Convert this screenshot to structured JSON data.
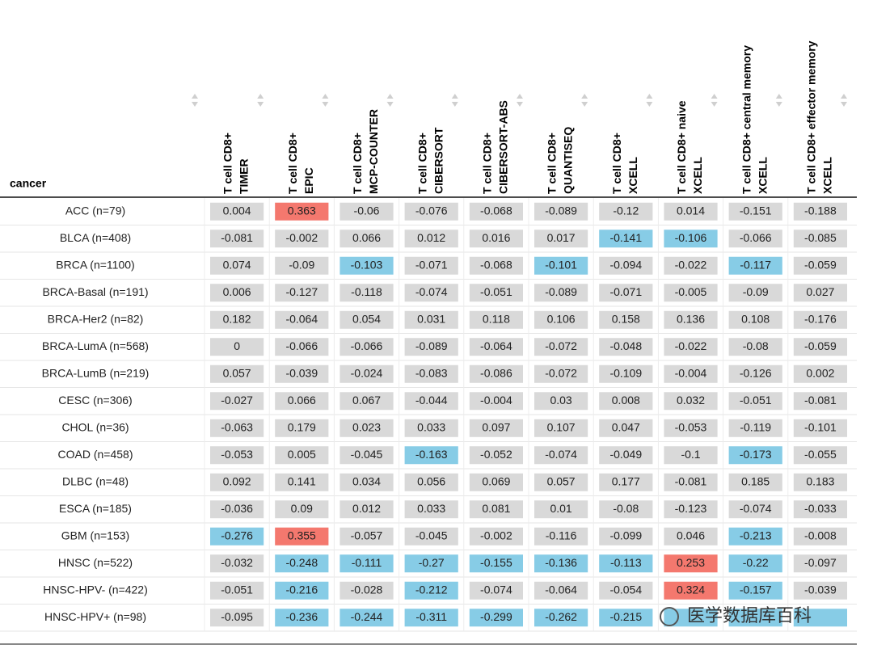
{
  "table": {
    "header": "cancer",
    "columns": [
      [
        "T cell CD8+",
        "TIMER"
      ],
      [
        "T cell CD8+",
        "EPIC"
      ],
      [
        "T cell CD8+",
        "MCP-COUNTER"
      ],
      [
        "T cell CD8+",
        "CIBERSORT"
      ],
      [
        "T cell CD8+",
        "CIBERSORT-ABS"
      ],
      [
        "T cell CD8+",
        "QUANTISEQ"
      ],
      [
        "T cell CD8+",
        "XCELL"
      ],
      [
        "T cell CD8+ naive",
        "XCELL"
      ],
      [
        "T cell CD8+ central memory",
        "XCELL"
      ],
      [
        "T cell CD8+ effector memory",
        "XCELL"
      ]
    ],
    "rows": [
      {
        "label": "ACC (n=79)",
        "values": [
          0.004,
          0.363,
          -0.06,
          -0.076,
          -0.068,
          -0.089,
          -0.12,
          0.014,
          -0.151,
          -0.188
        ],
        "colors": [
          "#d9d9d9",
          "#f4786e",
          "#d9d9d9",
          "#d9d9d9",
          "#d9d9d9",
          "#d9d9d9",
          "#d9d9d9",
          "#d9d9d9",
          "#d9d9d9",
          "#d9d9d9"
        ]
      },
      {
        "label": "BLCA (n=408)",
        "values": [
          -0.081,
          -0.002,
          0.066,
          0.012,
          0.016,
          0.017,
          -0.141,
          -0.106,
          -0.066,
          -0.085
        ],
        "colors": [
          "#d9d9d9",
          "#d9d9d9",
          "#d9d9d9",
          "#d9d9d9",
          "#d9d9d9",
          "#d9d9d9",
          "#87cce6",
          "#87cce6",
          "#d9d9d9",
          "#d9d9d9"
        ]
      },
      {
        "label": "BRCA (n=1100)",
        "values": [
          0.074,
          -0.09,
          -0.103,
          -0.071,
          -0.068,
          -0.101,
          -0.094,
          -0.022,
          -0.117,
          -0.059
        ],
        "colors": [
          "#d9d9d9",
          "#d9d9d9",
          "#87cce6",
          "#d9d9d9",
          "#d9d9d9",
          "#87cce6",
          "#d9d9d9",
          "#d9d9d9",
          "#87cce6",
          "#d9d9d9"
        ]
      },
      {
        "label": "BRCA-Basal (n=191)",
        "values": [
          0.006,
          -0.127,
          -0.118,
          -0.074,
          -0.051,
          -0.089,
          -0.071,
          -0.005,
          -0.09,
          0.027
        ],
        "colors": [
          "#d9d9d9",
          "#d9d9d9",
          "#d9d9d9",
          "#d9d9d9",
          "#d9d9d9",
          "#d9d9d9",
          "#d9d9d9",
          "#d9d9d9",
          "#d9d9d9",
          "#d9d9d9"
        ]
      },
      {
        "label": "BRCA-Her2 (n=82)",
        "values": [
          0.182,
          -0.064,
          0.054,
          0.031,
          0.118,
          0.106,
          0.158,
          0.136,
          0.108,
          -0.176
        ],
        "colors": [
          "#d9d9d9",
          "#d9d9d9",
          "#d9d9d9",
          "#d9d9d9",
          "#d9d9d9",
          "#d9d9d9",
          "#d9d9d9",
          "#d9d9d9",
          "#d9d9d9",
          "#d9d9d9"
        ]
      },
      {
        "label": "BRCA-LumA (n=568)",
        "values": [
          0,
          -0.066,
          -0.066,
          -0.089,
          -0.064,
          -0.072,
          -0.048,
          -0.022,
          -0.08,
          -0.059
        ],
        "colors": [
          "#d9d9d9",
          "#d9d9d9",
          "#d9d9d9",
          "#d9d9d9",
          "#d9d9d9",
          "#d9d9d9",
          "#d9d9d9",
          "#d9d9d9",
          "#d9d9d9",
          "#d9d9d9"
        ]
      },
      {
        "label": "BRCA-LumB (n=219)",
        "values": [
          0.057,
          -0.039,
          -0.024,
          -0.083,
          -0.086,
          -0.072,
          -0.109,
          -0.004,
          -0.126,
          0.002
        ],
        "colors": [
          "#d9d9d9",
          "#d9d9d9",
          "#d9d9d9",
          "#d9d9d9",
          "#d9d9d9",
          "#d9d9d9",
          "#d9d9d9",
          "#d9d9d9",
          "#d9d9d9",
          "#d9d9d9"
        ]
      },
      {
        "label": "CESC (n=306)",
        "values": [
          -0.027,
          0.066,
          0.067,
          -0.044,
          -0.004,
          0.03,
          0.008,
          0.032,
          -0.051,
          -0.081
        ],
        "colors": [
          "#d9d9d9",
          "#d9d9d9",
          "#d9d9d9",
          "#d9d9d9",
          "#d9d9d9",
          "#d9d9d9",
          "#d9d9d9",
          "#d9d9d9",
          "#d9d9d9",
          "#d9d9d9"
        ]
      },
      {
        "label": "CHOL (n=36)",
        "values": [
          -0.063,
          0.179,
          0.023,
          0.033,
          0.097,
          0.107,
          0.047,
          -0.053,
          -0.119,
          -0.101
        ],
        "colors": [
          "#d9d9d9",
          "#d9d9d9",
          "#d9d9d9",
          "#d9d9d9",
          "#d9d9d9",
          "#d9d9d9",
          "#d9d9d9",
          "#d9d9d9",
          "#d9d9d9",
          "#d9d9d9"
        ]
      },
      {
        "label": "COAD (n=458)",
        "values": [
          -0.053,
          0.005,
          -0.045,
          -0.163,
          -0.052,
          -0.074,
          -0.049,
          -0.1,
          -0.173,
          -0.055
        ],
        "colors": [
          "#d9d9d9",
          "#d9d9d9",
          "#d9d9d9",
          "#87cce6",
          "#d9d9d9",
          "#d9d9d9",
          "#d9d9d9",
          "#d9d9d9",
          "#87cce6",
          "#d9d9d9"
        ]
      },
      {
        "label": "DLBC (n=48)",
        "values": [
          0.092,
          0.141,
          0.034,
          0.056,
          0.069,
          0.057,
          0.177,
          -0.081,
          0.185,
          0.183
        ],
        "colors": [
          "#d9d9d9",
          "#d9d9d9",
          "#d9d9d9",
          "#d9d9d9",
          "#d9d9d9",
          "#d9d9d9",
          "#d9d9d9",
          "#d9d9d9",
          "#d9d9d9",
          "#d9d9d9"
        ]
      },
      {
        "label": "ESCA (n=185)",
        "values": [
          -0.036,
          0.09,
          0.012,
          0.033,
          0.081,
          0.01,
          -0.08,
          -0.123,
          -0.074,
          -0.033
        ],
        "colors": [
          "#d9d9d9",
          "#d9d9d9",
          "#d9d9d9",
          "#d9d9d9",
          "#d9d9d9",
          "#d9d9d9",
          "#d9d9d9",
          "#d9d9d9",
          "#d9d9d9",
          "#d9d9d9"
        ]
      },
      {
        "label": "GBM (n=153)",
        "values": [
          -0.276,
          0.355,
          -0.057,
          -0.045,
          -0.002,
          -0.116,
          -0.099,
          0.046,
          -0.213,
          -0.008
        ],
        "colors": [
          "#87cce6",
          "#f4786e",
          "#d9d9d9",
          "#d9d9d9",
          "#d9d9d9",
          "#d9d9d9",
          "#d9d9d9",
          "#d9d9d9",
          "#87cce6",
          "#d9d9d9"
        ]
      },
      {
        "label": "HNSC (n=522)",
        "values": [
          -0.032,
          -0.248,
          -0.111,
          -0.27,
          -0.155,
          -0.136,
          -0.113,
          0.253,
          -0.22,
          -0.097
        ],
        "colors": [
          "#d9d9d9",
          "#87cce6",
          "#87cce6",
          "#87cce6",
          "#87cce6",
          "#87cce6",
          "#87cce6",
          "#f4786e",
          "#87cce6",
          "#d9d9d9"
        ]
      },
      {
        "label": "HNSC-HPV- (n=422)",
        "values": [
          -0.051,
          -0.216,
          -0.028,
          -0.212,
          -0.074,
          -0.064,
          -0.054,
          0.324,
          -0.157,
          -0.039
        ],
        "colors": [
          "#d9d9d9",
          "#87cce6",
          "#d9d9d9",
          "#87cce6",
          "#d9d9d9",
          "#d9d9d9",
          "#d9d9d9",
          "#f4786e",
          "#87cce6",
          "#d9d9d9"
        ]
      },
      {
        "label": "HNSC-HPV+ (n=98)",
        "values": [
          -0.095,
          -0.236,
          -0.244,
          -0.311,
          -0.299,
          -0.262,
          -0.215,
          null,
          null,
          null
        ],
        "colors": [
          "#d9d9d9",
          "#87cce6",
          "#87cce6",
          "#87cce6",
          "#87cce6",
          "#87cce6",
          "#87cce6",
          "#87cce6",
          "#87cce6",
          "#87cce6"
        ]
      }
    ]
  },
  "watermark": "医学数据库百科"
}
